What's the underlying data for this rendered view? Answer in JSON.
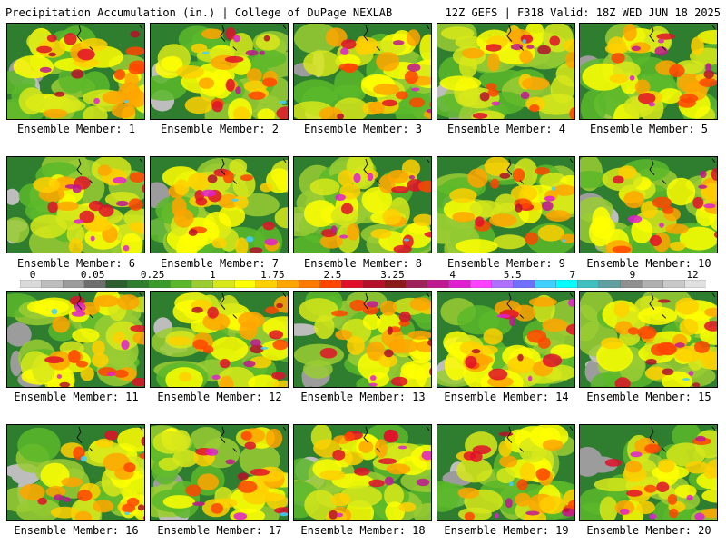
{
  "header": {
    "left_title": "Precipitation Accumulation (in.) | College of DuPage NEXLAB",
    "right_title": "12Z GEFS | F318 Valid: 18Z WED JUN 18 2025"
  },
  "colorbar": {
    "tick_labels": [
      "0",
      "0.05",
      "0.25",
      "1",
      "1.75",
      "2.5",
      "3.25",
      "4",
      "5.5",
      "7",
      "9",
      "12"
    ],
    "colors": [
      "#d9d9d9",
      "#bdbdbd",
      "#9c9c9c",
      "#6e6e6e",
      "#2c5f2c",
      "#2f7d2f",
      "#3a9a2c",
      "#5ab82a",
      "#9acd32",
      "#d7e81a",
      "#ffff00",
      "#ffd000",
      "#ffa500",
      "#ff7a00",
      "#ff4500",
      "#e0102a",
      "#b5102a",
      "#8b1a1a",
      "#a0205a",
      "#c01890",
      "#e020d0",
      "#ff40ff",
      "#b070ff",
      "#7070ff",
      "#40d0ff",
      "#00ffff",
      "#40c0c0",
      "#60a0a0",
      "#909090",
      "#b0b0b0",
      "#c8c8c8",
      "#e0e0e0"
    ]
  },
  "members": [
    {
      "label": "Ensemble Member: 1"
    },
    {
      "label": "Ensemble Member: 2"
    },
    {
      "label": "Ensemble Member: 3"
    },
    {
      "label": "Ensemble Member: 4"
    },
    {
      "label": "Ensemble Member: 5"
    },
    {
      "label": "Ensemble Member: 6"
    },
    {
      "label": "Ensemble Member: 7"
    },
    {
      "label": "Ensemble Member: 8"
    },
    {
      "label": "Ensemble Member: 9"
    },
    {
      "label": "Ensemble Member: 10"
    },
    {
      "label": "Ensemble Member: 11"
    },
    {
      "label": "Ensemble Member: 12"
    },
    {
      "label": "Ensemble Member: 13"
    },
    {
      "label": "Ensemble Member: 14"
    },
    {
      "label": "Ensemble Member: 15"
    },
    {
      "label": "Ensemble Member: 16"
    },
    {
      "label": "Ensemble Member: 17"
    },
    {
      "label": "Ensemble Member: 18"
    },
    {
      "label": "Ensemble Member: 19"
    },
    {
      "label": "Ensemble Member: 20"
    }
  ]
}
